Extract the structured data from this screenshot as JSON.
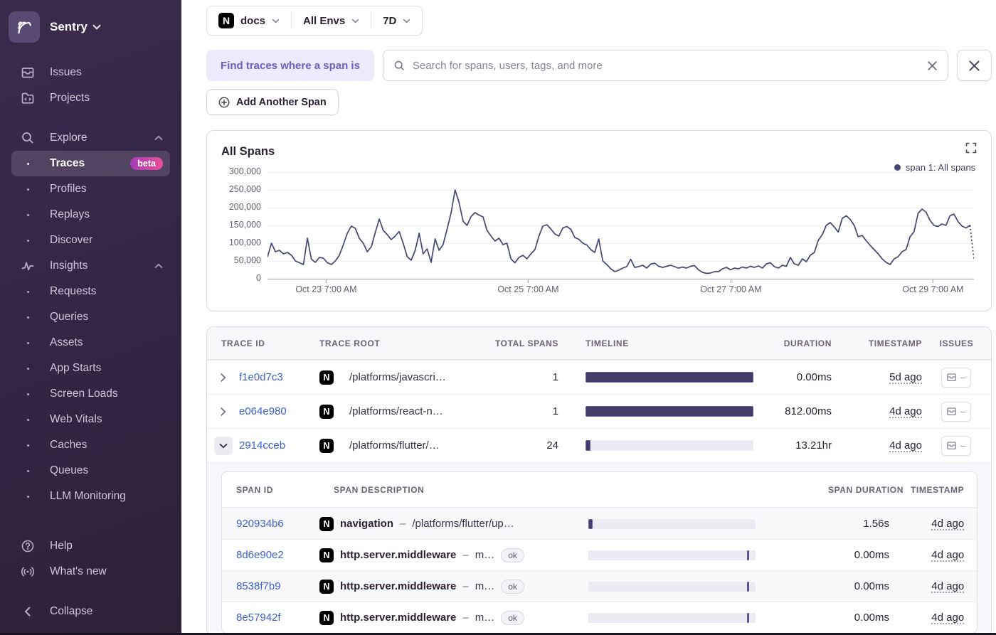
{
  "colors": {
    "sidebar_bg": "#332543",
    "accent_purple": "#6C5FC7",
    "link_blue": "#3b62d3",
    "chart_line": "#444674",
    "bar_fill": "#413c68",
    "beta_gradient_from": "#a13db8",
    "beta_gradient_to": "#ef4f97",
    "header_text": "#6a6275"
  },
  "sidebar": {
    "org_name": "Sentry",
    "items": [
      {
        "label": "Issues"
      },
      {
        "label": "Projects"
      },
      {
        "label": "Explore"
      },
      {
        "label": "Traces",
        "badge": "beta"
      },
      {
        "label": "Profiles"
      },
      {
        "label": "Replays"
      },
      {
        "label": "Discover"
      },
      {
        "label": "Insights"
      },
      {
        "label": "Requests"
      },
      {
        "label": "Queries"
      },
      {
        "label": "Assets"
      },
      {
        "label": "App Starts"
      },
      {
        "label": "Screen Loads"
      },
      {
        "label": "Web Vitals"
      },
      {
        "label": "Caches"
      },
      {
        "label": "Queues"
      },
      {
        "label": "LLM Monitoring"
      }
    ],
    "help_label": "Help",
    "whats_new_label": "What's new",
    "collapse_label": "Collapse"
  },
  "topbar": {
    "project": "docs",
    "project_icon": "nextjs-icon",
    "env": "All Envs",
    "range": "7D"
  },
  "search_row": {
    "find_label": "Find traces where a span is",
    "placeholder": "Search for spans, users, tags, and more"
  },
  "add_span_label": "Add Another Span",
  "chart_data": {
    "type": "line",
    "title": "All Spans",
    "legend": [
      {
        "name": "span 1: All spans",
        "color": "#444674",
        "position": "top-right"
      }
    ],
    "ylim": [
      0,
      300000
    ],
    "y_ticks": [
      "300,000",
      "250,000",
      "200,000",
      "150,000",
      "100,000",
      "50,000",
      "0"
    ],
    "x_ticks": [
      {
        "label": "Oct 23 7:00 AM",
        "pos": 0.083
      },
      {
        "label": "Oct 25 7:00 AM",
        "pos": 0.369
      },
      {
        "label": "Oct 27 7:00 AM",
        "pos": 0.656
      },
      {
        "label": "Oct 29 7:00 AM",
        "pos": 0.942
      }
    ],
    "grid": true,
    "dashed_tail_points": 2,
    "series": [
      {
        "name": "span 1: All spans",
        "values": [
          62000,
          100000,
          76000,
          80000,
          70000,
          74000,
          66000,
          50000,
          45000,
          40000,
          114000,
          55000,
          46000,
          60000,
          58000,
          45000,
          40000,
          50000,
          66000,
          96000,
          128000,
          148000,
          142000,
          114000,
          100000,
          76000,
          90000,
          130000,
          168000,
          136000,
          124000,
          110000,
          120000,
          133000,
          100000,
          62000,
          52000,
          80000,
          128000,
          70000,
          84000,
          46000,
          112000,
          80000,
          96000,
          140000,
          186000,
          250000,
          214000,
          162000,
          150000,
          175000,
          186000,
          179000,
          174000,
          136000,
          120000,
          106000,
          114000,
          96000,
          100000,
          56000,
          45000,
          60000,
          66000,
          56000,
          70000,
          82000,
          120000,
          148000,
          152000,
          140000,
          126000,
          120000,
          143000,
          147000,
          139000,
          116000,
          111000,
          100000,
          95000,
          82000,
          74000,
          112000,
          50000,
          40000,
          28000,
          20000,
          24000,
          30000,
          34000,
          55000,
          32000,
          34000,
          38000,
          30000,
          41000,
          44000,
          35000,
          32000,
          35000,
          38000,
          34000,
          30000,
          33000,
          30000,
          35000,
          37000,
          25000,
          18000,
          15000,
          16000,
          20000,
          20000,
          28000,
          32000,
          25000,
          30000,
          28000,
          33000,
          30000,
          35000,
          32000,
          36000,
          30000,
          42000,
          45000,
          34000,
          30000,
          38000,
          35000,
          60000,
          42000,
          38000,
          56000,
          48000,
          66000,
          74000,
          108000,
          124000,
          150000,
          158000,
          146000,
          131000,
          170000,
          177000,
          167000,
          150000,
          118000,
          122000,
          107000,
          94000,
          82000,
          70000,
          56000,
          46000,
          40000,
          56000,
          62000,
          76000,
          82000,
          118000,
          132000,
          184000,
          196000,
          187000,
          164000,
          150000,
          147000,
          154000,
          150000,
          177000,
          182000,
          161000,
          148000,
          143000,
          150000,
          55000
        ]
      }
    ]
  },
  "table": {
    "headers": {
      "trace_id": "TRACE ID",
      "trace_root": "TRACE ROOT",
      "total_spans": "TOTAL SPANS",
      "timeline": "TIMELINE",
      "duration": "DURATION",
      "timestamp": "TIMESTAMP",
      "issues": "ISSUES"
    },
    "rows": [
      {
        "trace_id": "f1e0d7c3",
        "root": "/platforms/javascri…",
        "spans": "1",
        "timeline": {
          "start": 0,
          "width": 100
        },
        "duration": "0.00ms",
        "timestamp": "5d ago",
        "issues": "–"
      },
      {
        "trace_id": "e064e980",
        "root": "/platforms/react-n…",
        "spans": "1",
        "timeline": {
          "start": 0,
          "width": 100
        },
        "duration": "812.00ms",
        "timestamp": "4d ago",
        "issues": "–"
      },
      {
        "trace_id": "2914cceb",
        "root": "/platforms/flutter/…",
        "spans": "24",
        "timeline": {
          "start": 0,
          "width": 3
        },
        "duration": "13.21hr",
        "timestamp": "4d ago",
        "issues": "–",
        "expanded": true
      }
    ],
    "sub": {
      "headers": {
        "span_id": "SPAN ID",
        "span_description": "SPAN DESCRIPTION",
        "span_duration": "SPAN DURATION",
        "timestamp": "TIMESTAMP"
      },
      "rows": [
        {
          "span_id": "920934b6",
          "name": "navigation",
          "sep": "–",
          "extra": "/platforms/flutter/up…",
          "badge": "",
          "timeline": {
            "start": 0,
            "width": 2.5
          },
          "duration": "1.56s",
          "timestamp": "4d ago"
        },
        {
          "span_id": "8d6e90e2",
          "name": "http.server.middleware",
          "sep": "–",
          "extra": "m…",
          "badge": "ok",
          "timeline": {
            "start": 95,
            "width": 1.3
          },
          "duration": "0.00ms",
          "timestamp": "4d ago"
        },
        {
          "span_id": "8538f7b9",
          "name": "http.server.middleware",
          "sep": "–",
          "extra": "m…",
          "badge": "ok",
          "timeline": {
            "start": 95,
            "width": 1.3
          },
          "duration": "0.00ms",
          "timestamp": "4d ago"
        },
        {
          "span_id": "8e57942f",
          "name": "http.server.middleware",
          "sep": "–",
          "extra": "m…",
          "badge": "ok",
          "timeline": {
            "start": 95,
            "width": 1.3
          },
          "duration": "0.00ms",
          "timestamp": "4d ago"
        }
      ]
    }
  }
}
